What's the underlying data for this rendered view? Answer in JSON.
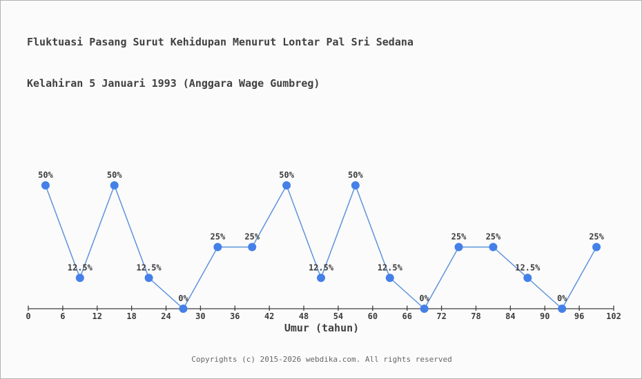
{
  "header": {
    "title_line1": "Fluktuasi Pasang Surut Kehidupan Menurut Lontar Pal Sri Sedana",
    "title_line2": "Kelahiran 5 Januari 1993 (Anggara Wage Gumbreg)"
  },
  "footer": {
    "copyright": "Copyrights (c) 2015-2026 webdika.com. All rights reserved"
  },
  "chart_data": {
    "type": "line",
    "title": "Fluktuasi Pasang Surut Kehidupan Menurut Lontar Pal Sri Sedana Kelahiran 5 Januari 1993 (Anggara Wage Gumbreg)",
    "xlabel": "Umur (tahun)",
    "ylabel": "",
    "x": [
      3,
      9,
      15,
      21,
      27,
      33,
      39,
      45,
      51,
      57,
      63,
      69,
      75,
      81,
      87,
      93,
      99
    ],
    "values": [
      50,
      12.5,
      50,
      12.5,
      0,
      25,
      25,
      50,
      12.5,
      50,
      12.5,
      0,
      25,
      25,
      12.5,
      0,
      25
    ],
    "point_labels": [
      "50%",
      "12.5%",
      "50%",
      "12.5%",
      "0%",
      "25%",
      "25%",
      "50%",
      "12.5%",
      "50%",
      "12.5%",
      "0%",
      "25%",
      "25%",
      "12.5%",
      "0%",
      "25%"
    ],
    "x_ticks": [
      0,
      6,
      12,
      18,
      24,
      30,
      36,
      42,
      48,
      54,
      60,
      66,
      72,
      78,
      84,
      90,
      96,
      102
    ],
    "xlim": [
      0,
      102
    ],
    "ylim": [
      0,
      100
    ],
    "grid": false,
    "legend": "none",
    "colors": {
      "line": "#5b93dd",
      "marker": "#4480e8",
      "axis": "#3c3c3c",
      "label_text": "#3c3c3c"
    }
  }
}
